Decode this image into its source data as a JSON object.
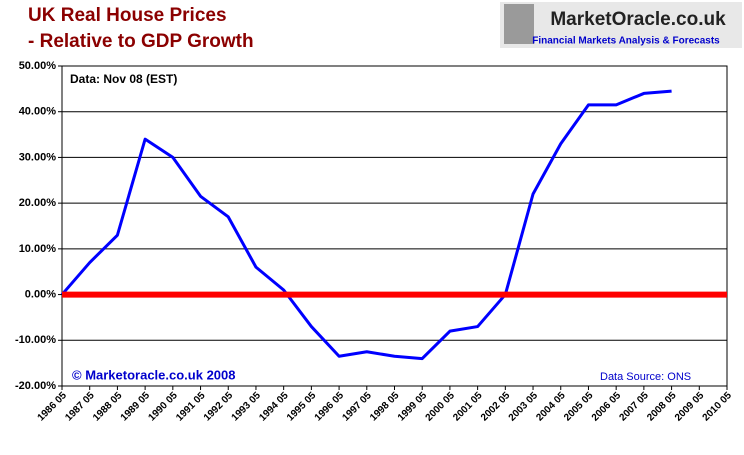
{
  "chart_data": {
    "type": "line",
    "title": [
      "UK Real House Prices",
      "- Relative to GDP Growth"
    ],
    "logo": {
      "name": "MarketOracle.co.uk",
      "tagline": "Financial Markets Analysis & Forecasts"
    },
    "annotations": [
      "Data: Nov 08 (EST)",
      "© Marketoracle.co.uk 2008",
      "Data Source: ONS"
    ],
    "categories": [
      "1986 05",
      "1987 05",
      "1988 05",
      "1989 05",
      "1990 05",
      "1991 05",
      "1992 05",
      "1993 05",
      "1994 05",
      "1995 05",
      "1996 05",
      "1997 05",
      "1998 05",
      "1999 05",
      "2000 05",
      "2001 05",
      "2002 05",
      "2003 05",
      "2004 05",
      "2005 05",
      "2006 05",
      "2007 05",
      "2008 05",
      "2009 05",
      "2010 05"
    ],
    "series": [
      {
        "color": "#0000ff",
        "values": [
          0,
          7,
          13,
          34,
          30,
          21.5,
          17,
          6,
          1,
          -7,
          -13.5,
          -12.5,
          -13.5,
          -14,
          -8,
          -7,
          0,
          22,
          33,
          41.5,
          41.5,
          44,
          44.5,
          null,
          null
        ]
      }
    ],
    "ylim": [
      -20,
      50
    ],
    "yticks": [
      {
        "value": -20,
        "label": "-20.00%"
      },
      {
        "value": -10,
        "label": "-10.00%"
      },
      {
        "value": 0,
        "label": "0.00%"
      },
      {
        "value": 10,
        "label": "10.00%"
      },
      {
        "value": 20,
        "label": "20.00%"
      },
      {
        "value": 30,
        "label": "30.00%"
      },
      {
        "value": 40,
        "label": "40.00%"
      },
      {
        "value": 50,
        "label": "50.00%"
      }
    ],
    "grid": true,
    "reference_line": {
      "value": 0,
      "color": "#ff0000"
    }
  }
}
